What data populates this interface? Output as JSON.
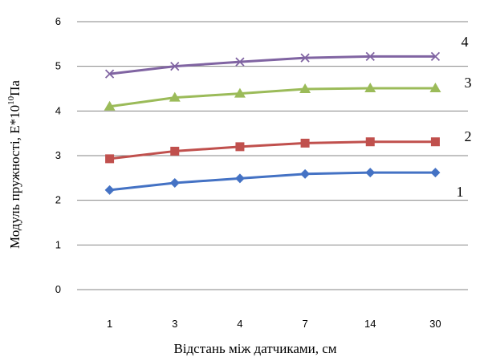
{
  "chart_data": {
    "type": "line",
    "categories": [
      "1",
      "3",
      "4",
      "7",
      "14",
      "30"
    ],
    "series": [
      {
        "name": "1",
        "values": [
          2.23,
          2.39,
          2.49,
          2.59,
          2.62,
          2.62
        ],
        "color": "#4472C4",
        "marker": "diamond"
      },
      {
        "name": "2",
        "values": [
          2.93,
          3.1,
          3.2,
          3.28,
          3.31,
          3.31
        ],
        "color": "#C0504D",
        "marker": "square"
      },
      {
        "name": "3",
        "values": [
          4.1,
          4.3,
          4.39,
          4.49,
          4.51,
          4.51
        ],
        "color": "#9BBB59",
        "marker": "triangle"
      },
      {
        "name": "4",
        "values": [
          4.83,
          5.0,
          5.1,
          5.19,
          5.22,
          5.22
        ],
        "color": "#8064A2",
        "marker": "x"
      }
    ],
    "xlabel": "Відстань між датчиками, см",
    "ylabel": "Модуль пружності,  E*10",
    "ylabel_exp": "10",
    "ylabel_unit": "Па",
    "ylim": [
      0,
      6
    ],
    "yticks": [
      "0",
      "1",
      "2",
      "3",
      "4",
      "5",
      "6"
    ],
    "grid": true,
    "legend": "labels-at-line-ends"
  }
}
